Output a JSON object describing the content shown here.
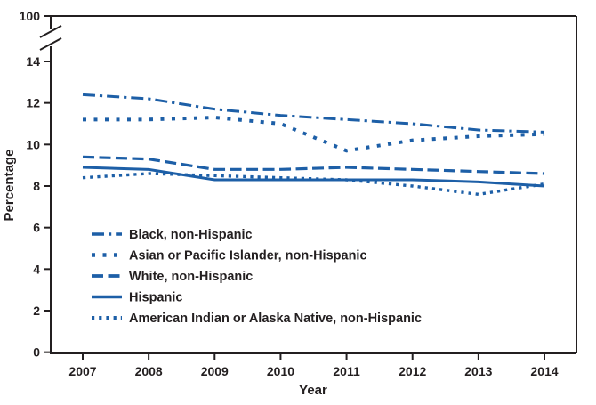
{
  "chart_data": {
    "type": "line",
    "title": "",
    "xlabel": "Year",
    "ylabel": "Percentage",
    "x": [
      2007,
      2008,
      2009,
      2010,
      2011,
      2012,
      2013,
      2014
    ],
    "y_ticks": [
      0,
      2,
      4,
      6,
      8,
      10,
      12,
      14
    ],
    "ylim": [
      0,
      14
    ],
    "y_axis_break": {
      "present": true,
      "upper_tick_label": "100"
    },
    "grid": false,
    "legend_position": "inside-lower-left",
    "line_color": "#1d5fa7",
    "axis_color": "#231f20",
    "series": [
      {
        "name": "Black, non-Hispanic",
        "style": "dash-dot",
        "values": [
          12.4,
          12.2,
          11.7,
          11.4,
          11.2,
          11.0,
          10.7,
          10.6
        ]
      },
      {
        "name": "Asian or Pacific Islander, non-Hispanic",
        "style": "dotted-medium",
        "values": [
          11.2,
          11.2,
          11.3,
          11.0,
          9.7,
          10.2,
          10.4,
          10.5
        ]
      },
      {
        "name": "White, non-Hispanic",
        "style": "dashed",
        "values": [
          9.4,
          9.3,
          8.8,
          8.8,
          8.9,
          8.8,
          8.7,
          8.6
        ]
      },
      {
        "name": "Hispanic",
        "style": "solid",
        "values": [
          8.9,
          8.8,
          8.3,
          8.3,
          8.3,
          8.3,
          8.2,
          8.0
        ]
      },
      {
        "name": "American Indian or Alaska Native, non-Hispanic",
        "style": "dotted-small",
        "values": [
          8.4,
          8.6,
          8.5,
          8.4,
          8.3,
          8.0,
          7.6,
          8.1
        ]
      }
    ]
  }
}
